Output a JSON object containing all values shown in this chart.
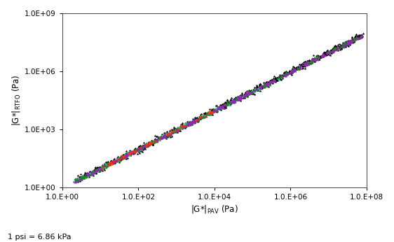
{
  "xlabel": "|G*|$_{PAV}$ (Pa)",
  "ylabel": "|G*|$_{RTFO}$ (Pa)",
  "footnote": "1 psi = 6.86 kPa",
  "xlim": [
    1.0,
    100000000.0
  ],
  "ylim": [
    1.0,
    1000000000.0
  ],
  "xticks": [
    1.0,
    100.0,
    10000.0,
    1000000.0,
    100000000.0
  ],
  "yticks": [
    1.0,
    1000.0,
    1000000.0,
    1000000000.0
  ],
  "xtick_labels": [
    "1.0.E+00",
    "1.0.E+02",
    "1.0.E+04",
    "1.0.E+06",
    "1.0.E+08"
  ],
  "ytick_labels": [
    "1.0E+00",
    "1.0E+03",
    "1.0E+06",
    "1.0E+09"
  ],
  "meas_color": "#000000",
  "pg58_color": "#33BB88",
  "pg64_color": "#FF3300",
  "pg70_color": "#44CCBB",
  "pg76_color": "#009900",
  "pg82_color": "#9922BB",
  "background_color": "#FFFFFF",
  "slope": 1.0,
  "intercept": 0.95
}
